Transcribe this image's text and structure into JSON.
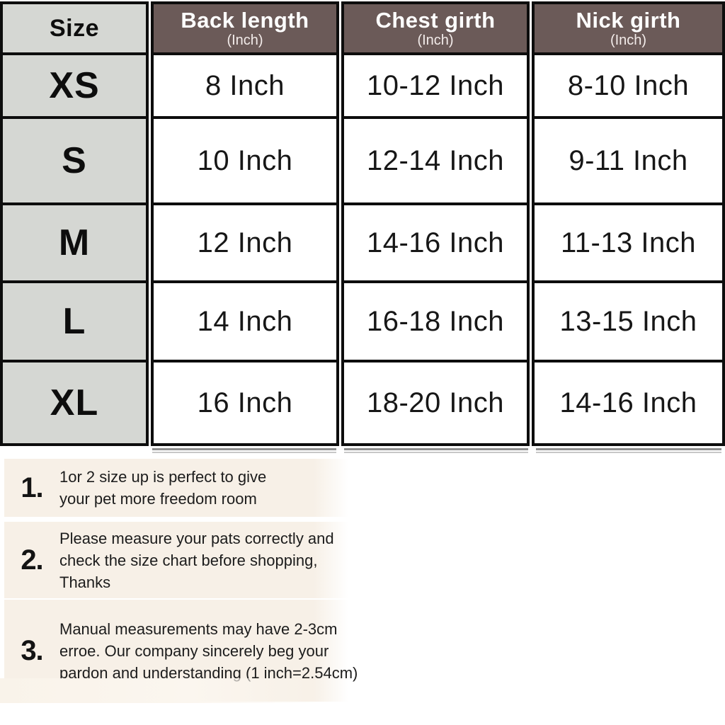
{
  "table": {
    "header": {
      "size_label": "Size",
      "columns": [
        {
          "title": "Back length",
          "unit": "(Inch)"
        },
        {
          "title": "Chest girth",
          "unit": "(Inch)"
        },
        {
          "title": "Nick girth",
          "unit": "(Inch)"
        }
      ]
    },
    "rows": [
      {
        "size": "XS",
        "back": "8 Inch",
        "chest": "10-12 Inch",
        "nick": "8-10 Inch"
      },
      {
        "size": "S",
        "back": "10 Inch",
        "chest": "12-14 Inch",
        "nick": "9-11 Inch"
      },
      {
        "size": "M",
        "back": "12 Inch",
        "chest": "14-16 Inch",
        "nick": "11-13 Inch"
      },
      {
        "size": "L",
        "back": "14 Inch",
        "chest": "16-18 Inch",
        "nick": "13-15 Inch"
      },
      {
        "size": "XL",
        "back": "16 Inch",
        "chest": "18-20 Inch",
        "nick": "14-16 Inch"
      }
    ]
  },
  "notes": [
    {
      "number": "1.",
      "lines": [
        "1or 2 size up is perfect to give",
        "your pet more freedom room"
      ]
    },
    {
      "number": "2.",
      "lines": [
        "Please measure your pats correctly and",
        "check the size chart before shopping,",
        "Thanks"
      ]
    },
    {
      "number": "3.",
      "lines": [
        "Manual measurements may have 2-3cm",
        "erroe. Our company sincerely beg your",
        "pardon and understanding (1 inch=2.54cm)"
      ]
    }
  ],
  "colors": {
    "header_bg": "#6b5a58",
    "header_text": "#ffffff",
    "size_column_bg": "#d5d7d3",
    "border": "#0d0d0d",
    "note_band_bg": "#f7f0e7",
    "text": "#111111"
  },
  "chart_data": {
    "type": "table",
    "columns": [
      "Size",
      "Back length (Inch)",
      "Chest girth (Inch)",
      "Nick girth (Inch)"
    ],
    "rows": [
      [
        "XS",
        "8 Inch",
        "10-12 Inch",
        "8-10 Inch"
      ],
      [
        "S",
        "10 Inch",
        "12-14 Inch",
        "9-11 Inch"
      ],
      [
        "M",
        "12 Inch",
        "14-16 Inch",
        "11-13 Inch"
      ],
      [
        "L",
        "14 Inch",
        "16-18 Inch",
        "13-15 Inch"
      ],
      [
        "XL",
        "16 Inch",
        "18-20 Inch",
        "14-16 Inch"
      ]
    ],
    "footnotes": [
      "1. 1or 2 size up is perfect to give your pet more freedom room",
      "2. Please measure your pats correctly and check the size chart before shopping, Thanks",
      "3. Manual measurements may have 2-3cm erroe. Our company sincerely beg your pardon and understanding (1 inch=2.54cm)"
    ]
  }
}
